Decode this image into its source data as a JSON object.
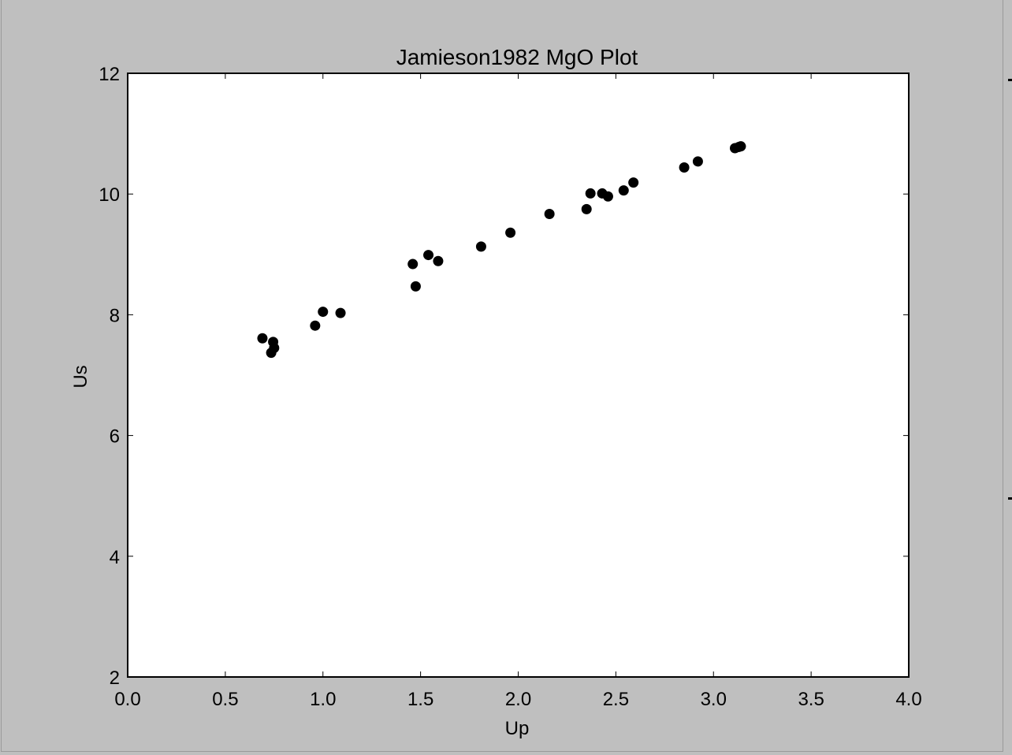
{
  "chart_data": {
    "type": "scatter",
    "title": "Jamieson1982 MgO Plot",
    "xlabel": "Up",
    "ylabel": "Us",
    "xlim": [
      0.0,
      4.0
    ],
    "ylim": [
      2,
      12
    ],
    "x_ticks": [
      "0.0",
      "0.5",
      "1.0",
      "1.5",
      "2.0",
      "2.5",
      "3.0",
      "3.5",
      "4.0"
    ],
    "y_ticks": [
      "2",
      "4",
      "6",
      "8",
      "10",
      "12"
    ],
    "grid": false,
    "marker_color": "#000000",
    "series": [
      {
        "points": [
          [
            0.69,
            7.61
          ],
          [
            0.745,
            7.55
          ],
          [
            0.75,
            7.45
          ],
          [
            0.735,
            7.37
          ],
          [
            0.96,
            7.82
          ],
          [
            1.0,
            8.05
          ],
          [
            1.09,
            8.03
          ],
          [
            1.46,
            8.84
          ],
          [
            1.475,
            8.47
          ],
          [
            1.54,
            8.99
          ],
          [
            1.59,
            8.89
          ],
          [
            1.81,
            9.13
          ],
          [
            1.96,
            9.36
          ],
          [
            2.16,
            9.67
          ],
          [
            2.35,
            9.75
          ],
          [
            2.37,
            10.01
          ],
          [
            2.43,
            10.01
          ],
          [
            2.46,
            9.96
          ],
          [
            2.54,
            10.06
          ],
          [
            2.59,
            10.19
          ],
          [
            2.85,
            10.44
          ],
          [
            2.92,
            10.54
          ],
          [
            3.11,
            10.76
          ],
          [
            3.13,
            10.78
          ],
          [
            3.14,
            10.79
          ]
        ]
      }
    ]
  }
}
